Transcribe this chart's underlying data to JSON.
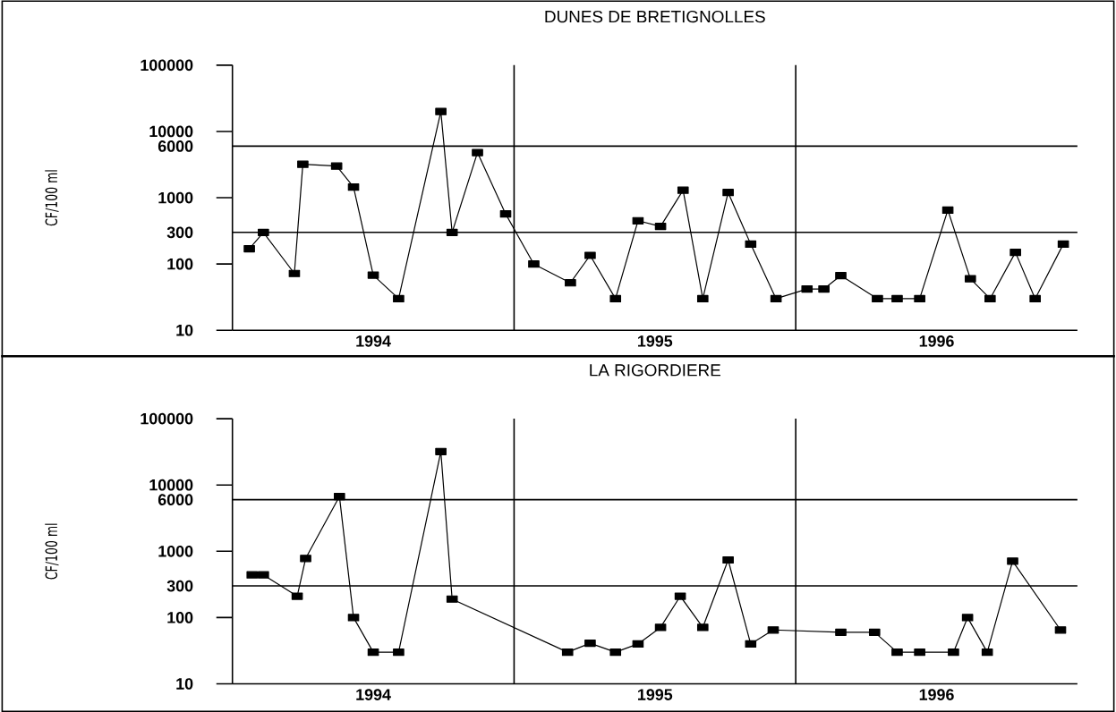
{
  "chart_data": [
    {
      "type": "line",
      "title": "DUNES DE BRETIGNOLLES",
      "ylabel": "CF/100 ml",
      "log": true,
      "marker": "square",
      "line_style": "solid",
      "xlim": [
        1994,
        1997
      ],
      "xticks": [
        {
          "value": 1994.5,
          "label": "1994"
        },
        {
          "value": 1995.5,
          "label": "1995"
        },
        {
          "value": 1996.5,
          "label": "1996"
        }
      ],
      "ylim": [
        10,
        100000
      ],
      "yticks": [
        10,
        100,
        1000,
        10000,
        100000
      ],
      "ref_lines": [
        {
          "axis": "y",
          "value": 300,
          "label": "300"
        },
        {
          "axis": "y",
          "value": 6000,
          "label": "6000"
        },
        {
          "axis": "x",
          "value": 1995,
          "label": null
        },
        {
          "axis": "x",
          "value": 1996,
          "label": null
        }
      ],
      "series": [
        {
          "color": "#000000",
          "x": [
            1994.06,
            1994.11,
            1994.22,
            1994.25,
            1994.37,
            1994.43,
            1994.5,
            1994.59,
            1994.74,
            1994.78,
            1994.87,
            1994.97,
            1995.07,
            1995.2,
            1995.27,
            1995.36,
            1995.44,
            1995.52,
            1995.6,
            1995.67,
            1995.76,
            1995.84,
            1995.93,
            1996.04,
            1996.1,
            1996.16,
            1996.29,
            1996.36,
            1996.44,
            1996.54,
            1996.62,
            1996.69,
            1996.78,
            1996.85,
            1996.95
          ],
          "values": [
            170,
            300,
            72,
            3200,
            3000,
            1450,
            68,
            30,
            20000,
            300,
            4800,
            570,
            100,
            52,
            135,
            30,
            450,
            370,
            1300,
            30,
            1200,
            200,
            30,
            42,
            42,
            67,
            30,
            30,
            30,
            650,
            60,
            30,
            150,
            30,
            200
          ]
        }
      ]
    },
    {
      "type": "line",
      "title": "LA RIGORDIERE",
      "ylabel": "CF/100 ml",
      "log": true,
      "marker": "square",
      "line_style": "solid",
      "xlim": [
        1994,
        1997
      ],
      "xticks": [
        {
          "value": 1994.5,
          "label": "1994"
        },
        {
          "value": 1995.5,
          "label": "1995"
        },
        {
          "value": 1996.5,
          "label": "1996"
        }
      ],
      "ylim": [
        10,
        100000
      ],
      "yticks": [
        10,
        100,
        1000,
        10000,
        100000
      ],
      "ref_lines": [
        {
          "axis": "y",
          "value": 300,
          "label": "300"
        },
        {
          "axis": "y",
          "value": 6000,
          "label": "6000"
        },
        {
          "axis": "x",
          "value": 1995,
          "label": null
        },
        {
          "axis": "x",
          "value": 1996,
          "label": null
        }
      ],
      "series": [
        {
          "color": "#000000",
          "x": [
            1994.07,
            1994.11,
            1994.23,
            1994.26,
            1994.38,
            1994.43,
            1994.5,
            1994.59,
            1994.74,
            1994.78,
            1995.19,
            1995.27,
            1995.36,
            1995.44,
            1995.52,
            1995.59,
            1995.67,
            1995.76,
            1995.84,
            1995.92,
            1996.16,
            1996.28,
            1996.36,
            1996.44,
            1996.56,
            1996.61,
            1996.68,
            1996.77,
            1996.94
          ],
          "values": [
            440,
            440,
            210,
            780,
            6700,
            100,
            30,
            30,
            32000,
            190,
            30,
            41,
            30,
            40,
            71,
            210,
            71,
            740,
            40,
            65,
            60,
            60,
            30,
            30,
            30,
            100,
            30,
            710,
            65
          ]
        }
      ]
    }
  ]
}
